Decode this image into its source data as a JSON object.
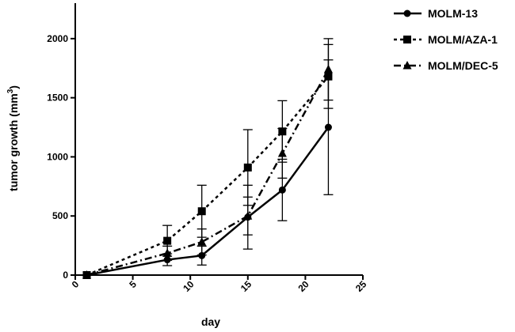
{
  "chart_data": {
    "type": "line",
    "title": "",
    "xlabel": "day",
    "ylabel_main": "tumor growth (mm",
    "ylabel_sup": "3",
    "ylabel_close": ")",
    "xlim": [
      0,
      25
    ],
    "ylim": [
      0,
      2300
    ],
    "xticks": [
      0,
      5,
      10,
      15,
      20,
      25
    ],
    "yticks": [
      0,
      500,
      1000,
      1500,
      2000
    ],
    "legend_position": "top-right",
    "series": [
      {
        "name": "MOLM-13",
        "marker": "circle",
        "line_style": "solid",
        "x": [
          1,
          8,
          11,
          15,
          18,
          22
        ],
        "y": [
          0,
          130,
          165,
          490,
          720,
          1250
        ],
        "err": [
          0,
          50,
          80,
          270,
          260,
          570
        ]
      },
      {
        "name": "MOLM/AZA-1",
        "marker": "square",
        "line_style": "dotted",
        "x": [
          1,
          8,
          11,
          15,
          18,
          22
        ],
        "y": [
          0,
          290,
          540,
          910,
          1215,
          1680
        ],
        "err": [
          0,
          130,
          220,
          320,
          260,
          270
        ]
      },
      {
        "name": "MOLM/DEC-5",
        "marker": "triangle",
        "line_style": "dashdot",
        "x": [
          1,
          8,
          11,
          15,
          18,
          22
        ],
        "y": [
          0,
          185,
          280,
          500,
          1030,
          1740
        ],
        "err": [
          0,
          60,
          110,
          160,
          210,
          260
        ]
      }
    ]
  }
}
